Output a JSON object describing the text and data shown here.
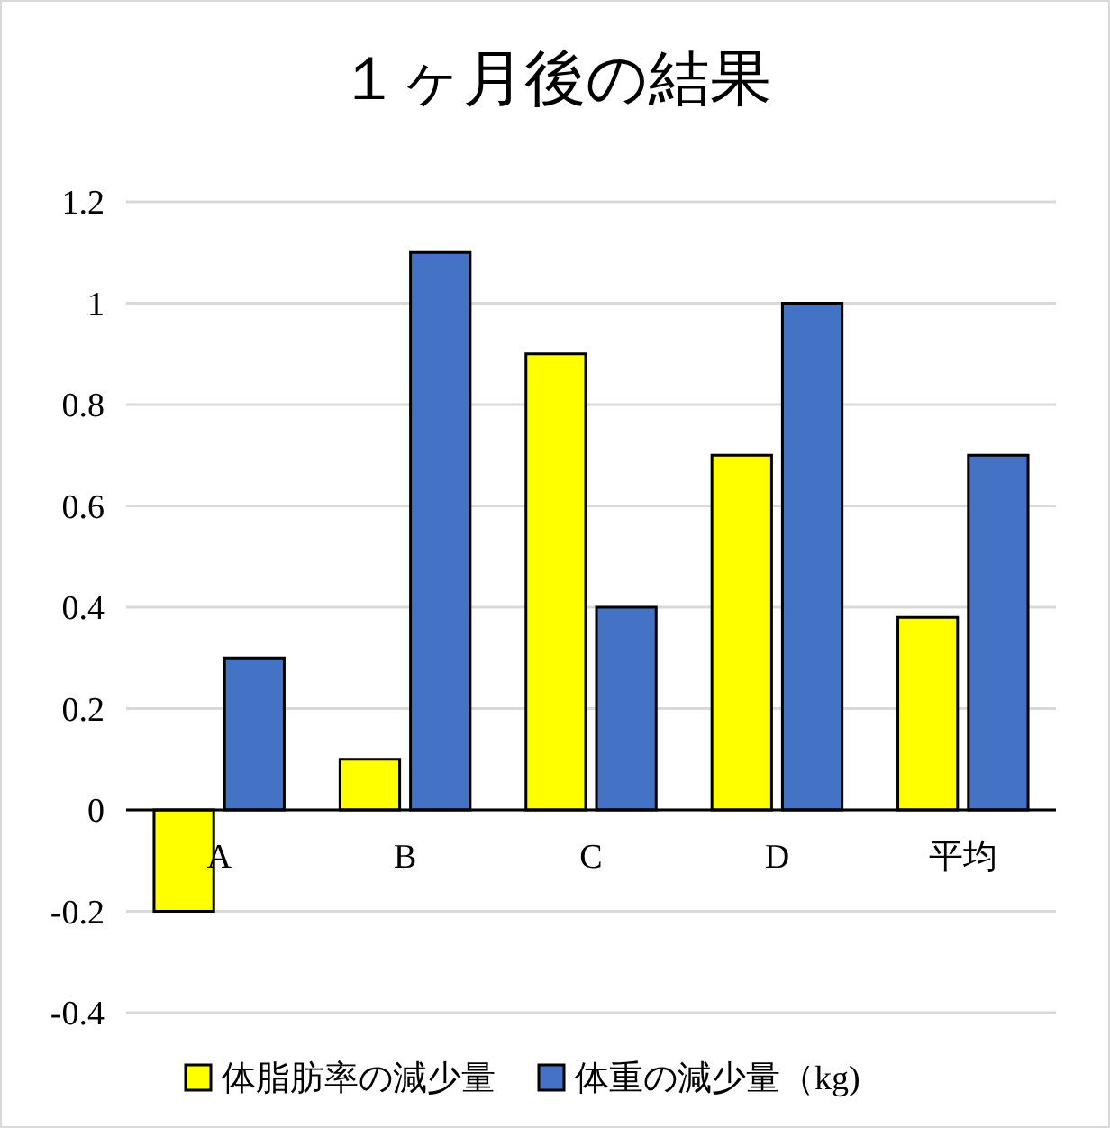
{
  "chart_data": {
    "type": "bar",
    "title": "１ヶ月後の結果",
    "categories": [
      "A",
      "B",
      "C",
      "D",
      "平均"
    ],
    "series": [
      {
        "name": "体脂肪率の減少量",
        "color": "#ffff00",
        "values": [
          -0.2,
          0.1,
          0.9,
          0.7,
          0.38
        ]
      },
      {
        "name": "体重の減少量（kg)",
        "color": "#4472c4",
        "values": [
          0.3,
          1.1,
          0.4,
          1.0,
          0.7
        ]
      }
    ],
    "ylim": [
      -0.4,
      1.2
    ],
    "yticks": [
      -0.4,
      -0.2,
      0,
      0.2,
      0.4,
      0.6,
      0.8,
      1,
      1.2
    ],
    "grid": "y",
    "legend": "bottom"
  }
}
